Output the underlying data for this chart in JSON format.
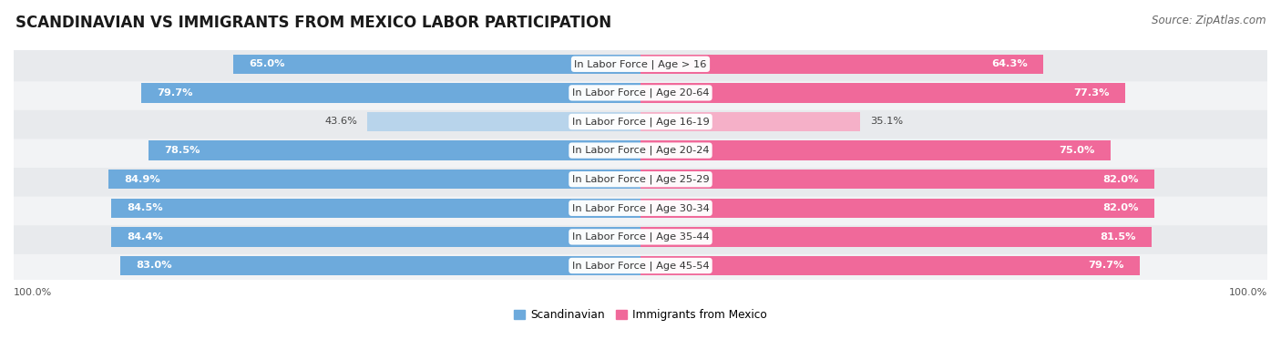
{
  "title": "SCANDINAVIAN VS IMMIGRANTS FROM MEXICO LABOR PARTICIPATION",
  "source": "Source: ZipAtlas.com",
  "categories": [
    "In Labor Force | Age > 16",
    "In Labor Force | Age 20-64",
    "In Labor Force | Age 16-19",
    "In Labor Force | Age 20-24",
    "In Labor Force | Age 25-29",
    "In Labor Force | Age 30-34",
    "In Labor Force | Age 35-44",
    "In Labor Force | Age 45-54"
  ],
  "scandinavian_values": [
    65.0,
    79.7,
    43.6,
    78.5,
    84.9,
    84.5,
    84.4,
    83.0
  ],
  "mexico_values": [
    64.3,
    77.3,
    35.1,
    75.0,
    82.0,
    82.0,
    81.5,
    79.7
  ],
  "scandinavian_color": "#6daadc",
  "scandinavian_light_color": "#b8d4eb",
  "mexico_color": "#f0699a",
  "mexico_light_color": "#f5b0c8",
  "row_bg_colors": [
    "#e8eaed",
    "#f2f3f5"
  ],
  "bar_height": 0.68,
  "max_value": 100.0,
  "legend_scand": "Scandinavian",
  "legend_mexico": "Immigrants from Mexico",
  "title_fontsize": 12,
  "source_fontsize": 8.5,
  "label_fontsize": 8.2,
  "category_fontsize": 8.2,
  "axis_label_fontsize": 8,
  "background_color": "#ffffff"
}
